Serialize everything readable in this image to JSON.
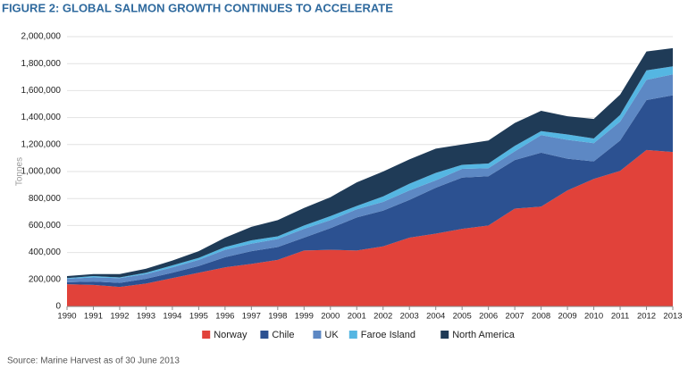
{
  "chart_data": {
    "type": "stacked-area",
    "title": "FIGURE 2: GLOBAL SALMON GROWTH CONTINUES TO ACCELERATE",
    "y_label": "Tonnes",
    "source": "Source: Marine Harvest as of 30 June 2013",
    "x": [
      1990,
      1991,
      1992,
      1993,
      1994,
      1995,
      1996,
      1997,
      1998,
      1999,
      2000,
      2001,
      2002,
      2003,
      2004,
      2005,
      2006,
      2007,
      2008,
      2009,
      2010,
      2011,
      2012,
      2013
    ],
    "xlim": [
      1990,
      2013
    ],
    "xticks": [
      1990,
      1991,
      1992,
      1993,
      1994,
      1995,
      1996,
      1997,
      1998,
      1999,
      2000,
      2001,
      2002,
      2003,
      2004,
      2005,
      2006,
      2007,
      2008,
      2009,
      2010,
      2011,
      2012,
      2013
    ],
    "ylim": [
      0,
      2000000
    ],
    "yticks": [
      0,
      {
        "value": 200000,
        "label": "200,000"
      },
      {
        "value": 400000,
        "label": "400,000"
      },
      {
        "value": 600000,
        "label": "600,000"
      },
      {
        "value": 800000,
        "label": "800,000"
      },
      {
        "value": 1000000,
        "label": "1,000,000"
      },
      {
        "value": 1200000,
        "label": "1,200,000"
      },
      {
        "value": 1400000,
        "label": "1,400,000"
      },
      {
        "value": 1600000,
        "label": "1,600,000"
      },
      {
        "value": 1800000,
        "label": "1,800,000"
      },
      {
        "value": 2000000,
        "label": "2,000,000"
      }
    ],
    "grid": true,
    "legend": "bottom",
    "series": [
      {
        "name": "Norway",
        "color": "#e1423a",
        "values": [
          165000,
          160000,
          145000,
          170000,
          210000,
          250000,
          290000,
          315000,
          345000,
          415000,
          420000,
          415000,
          445000,
          510000,
          540000,
          575000,
          600000,
          725000,
          740000,
          860000,
          945000,
          1005000,
          1160000,
          1145000
        ]
      },
      {
        "name": "Chile",
        "color": "#2c5191",
        "values": [
          15000,
          25000,
          30000,
          35000,
          40000,
          50000,
          75000,
          95000,
          95000,
          95000,
          160000,
          245000,
          265000,
          280000,
          340000,
          380000,
          365000,
          360000,
          400000,
          235000,
          130000,
          225000,
          370000,
          420000
        ]
      },
      {
        "name": "UK",
        "color": "#5d88c4",
        "values": [
          25000,
          30000,
          35000,
          35000,
          40000,
          45000,
          55000,
          55000,
          60000,
          65000,
          60000,
          60000,
          65000,
          70000,
          55000,
          65000,
          60000,
          65000,
          130000,
          140000,
          135000,
          140000,
          150000,
          155000
        ]
      },
      {
        "name": "Faroe Island",
        "color": "#55b6e2",
        "values": [
          5000,
          10000,
          5000,
          10000,
          15000,
          15000,
          20000,
          25000,
          20000,
          25000,
          30000,
          25000,
          40000,
          50000,
          55000,
          30000,
          35000,
          40000,
          30000,
          40000,
          35000,
          50000,
          70000,
          60000
        ]
      },
      {
        "name": "North America",
        "color": "#1f3b57",
        "values": [
          15000,
          15000,
          25000,
          30000,
          35000,
          50000,
          70000,
          100000,
          120000,
          130000,
          140000,
          175000,
          185000,
          180000,
          180000,
          150000,
          170000,
          170000,
          150000,
          135000,
          145000,
          150000,
          140000,
          135000
        ]
      }
    ]
  }
}
